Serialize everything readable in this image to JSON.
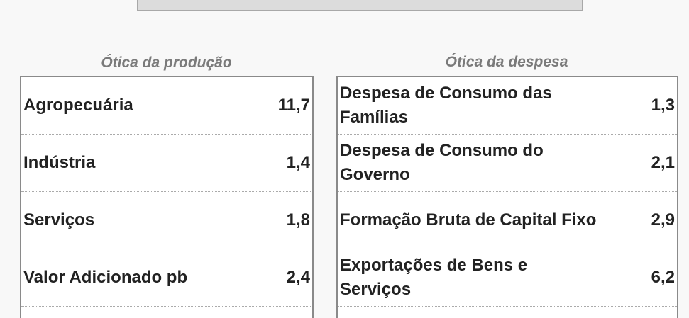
{
  "producao": {
    "title": "Ótica da produção",
    "rows": [
      {
        "label": "Agropecuária",
        "value": "11,7"
      },
      {
        "label": "Indústria",
        "value": "1,4"
      },
      {
        "label": "Serviços",
        "value": "1,8"
      },
      {
        "label": "Valor Adicionado pb",
        "value": "2,4"
      }
    ]
  },
  "despesa": {
    "title": "Ótica da despesa",
    "rows": [
      {
        "label": "Despesa de Consumo das Famílias",
        "value": "1,3"
      },
      {
        "label": "Despesa de Consumo do Governo",
        "value": "2,1"
      },
      {
        "label": "Formação Bruta de Capital Fixo",
        "value": "2,9"
      },
      {
        "label": "Exportações de Bens e Serviços",
        "value": "6,2"
      }
    ]
  }
}
